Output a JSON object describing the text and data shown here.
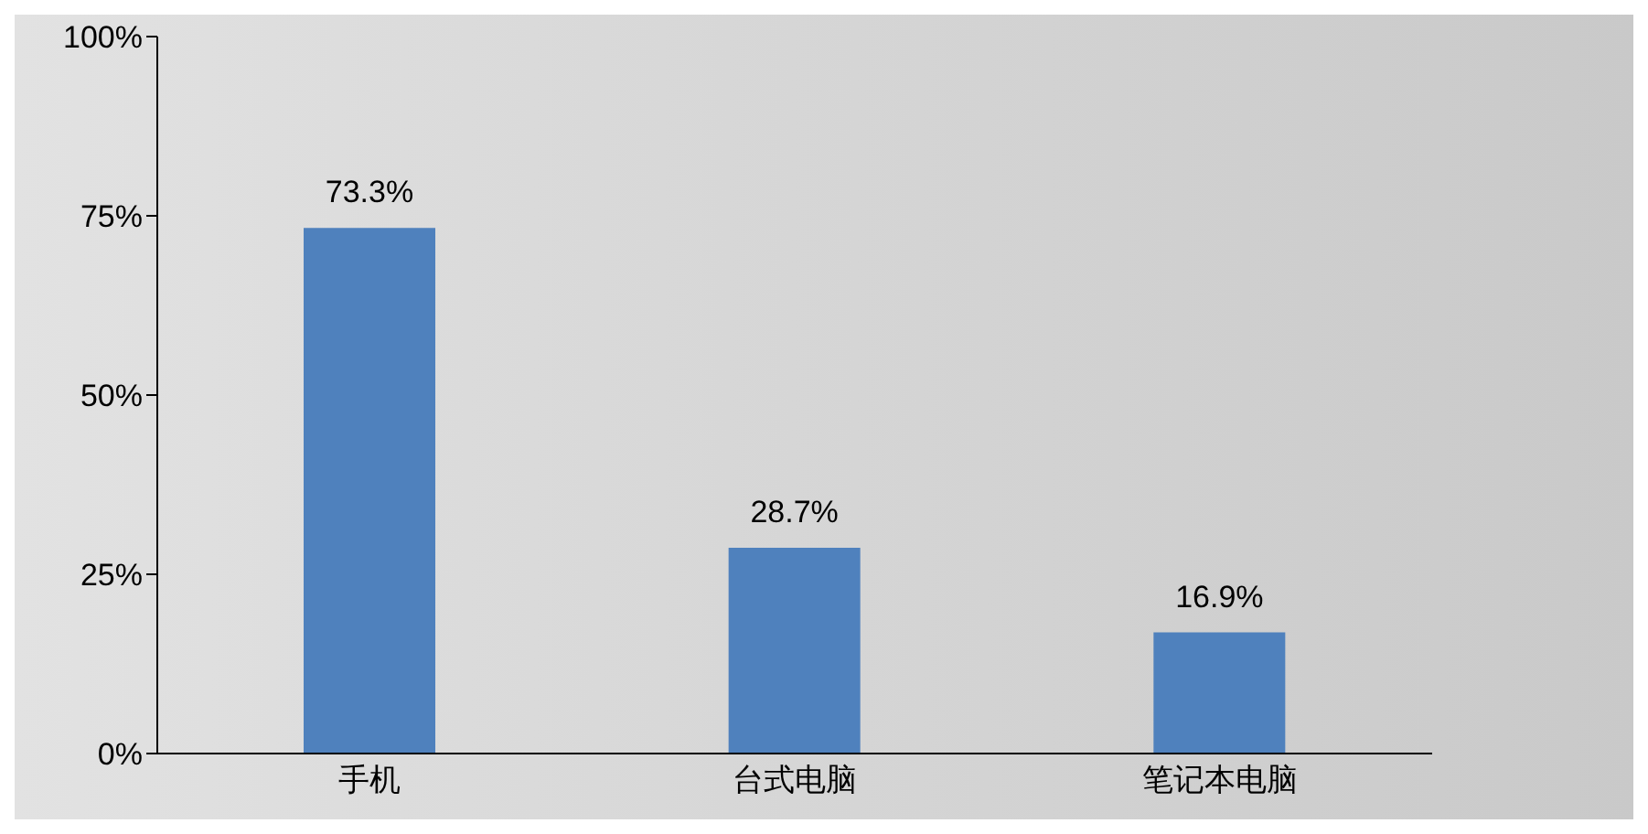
{
  "chart_data": {
    "type": "bar",
    "categories": [
      "手机",
      "台式电脑",
      "笔记本电脑"
    ],
    "values": [
      73.3,
      28.7,
      16.9
    ],
    "color": "#4f81bd",
    "value_labels": [
      "73.3%",
      "28.7%",
      "16.9%"
    ],
    "ylim": [
      0,
      100
    ],
    "yticks": [
      {
        "value": 0,
        "label": "0%"
      },
      {
        "value": 25,
        "label": "25%"
      },
      {
        "value": 50,
        "label": "50%"
      },
      {
        "value": 75,
        "label": "75%"
      },
      {
        "value": 100,
        "label": "100%"
      }
    ],
    "grid": false,
    "legend": false
  }
}
